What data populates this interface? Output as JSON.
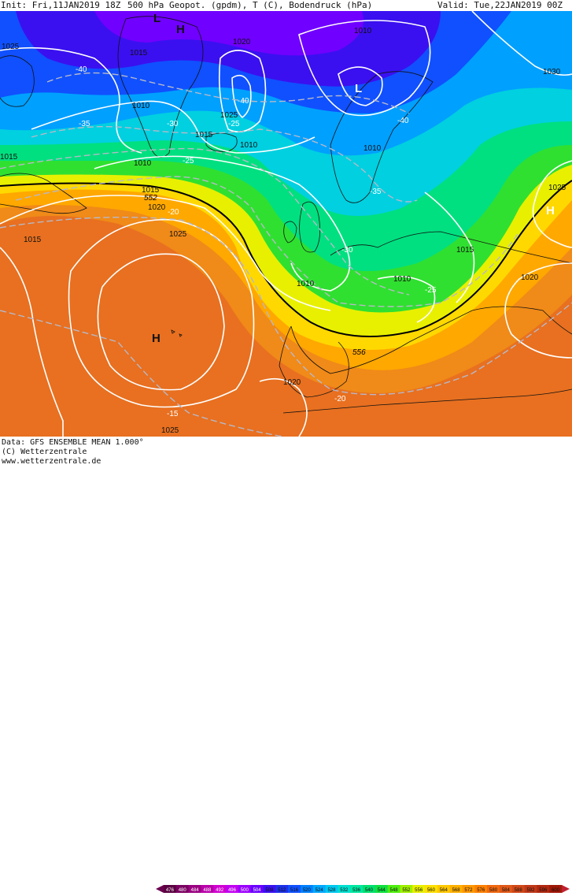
{
  "header": {
    "init": "Init: Fri,11JAN2019 18Z",
    "title": "500 hPa Geopot. (gpdm), T (C), Bodendruck (hPa)",
    "valid": "Valid: Tue,22JAN2019 00Z"
  },
  "footer": {
    "source": "Data: GFS ENSEMBLE MEAN 1.000°",
    "copyright": "(C) Wetterzentrale",
    "url": "www.wetterzentrale.de"
  },
  "legend": {
    "values": [
      "476",
      "480",
      "484",
      "488",
      "492",
      "496",
      "500",
      "504",
      "508",
      "512",
      "516",
      "520",
      "524",
      "528",
      "532",
      "536",
      "540",
      "544",
      "548",
      "552",
      "556",
      "560",
      "564",
      "568",
      "572",
      "576",
      "580",
      "584",
      "588",
      "592",
      "596",
      "600"
    ],
    "colors": [
      "#5a0040",
      "#7a0060",
      "#9a0080",
      "#b800a8",
      "#d000d0",
      "#c000f0",
      "#9a00ff",
      "#6a00ff",
      "#3a10f0",
      "#1c30e8",
      "#1050ff",
      "#0080ff",
      "#00a8ff",
      "#00c8f0",
      "#00e0d0",
      "#00e8a0",
      "#00e070",
      "#10e040",
      "#50ef10",
      "#a0f000",
      "#e8f000",
      "#ffe000",
      "#ffc800",
      "#ffb000",
      "#ff9800",
      "#ff8000",
      "#f06810",
      "#e05818",
      "#d04818",
      "#c03818",
      "#b02810",
      "#a01808"
    ],
    "low_arrow_color": "#6a0050",
    "high_arrow_color": "#c02030"
  },
  "map": {
    "colors": {
      "coast": "#111111",
      "isobar": "#ffffff",
      "isotherm": "#b8b8c8",
      "line_552": "#000000"
    },
    "pressure_labels": [
      "1025",
      "1015",
      "1020",
      "1010",
      "1015",
      "1010",
      "1010",
      "1025",
      "1015",
      "1010",
      "1010",
      "1030",
      "1015",
      "1020",
      "1025",
      "1015",
      "1010",
      "1010",
      "1015",
      "1020",
      "1025",
      "1020",
      "1025"
    ],
    "temperature_labels": [
      "-40",
      "-35",
      "-30",
      "-40",
      "-25",
      "-25",
      "-40",
      "-35",
      "-30",
      "-25",
      "-20",
      "-20",
      "-15"
    ],
    "geopot_labels": [
      "552",
      "556"
    ],
    "high_low": [
      "L",
      "H",
      "L",
      "H",
      "H"
    ]
  }
}
